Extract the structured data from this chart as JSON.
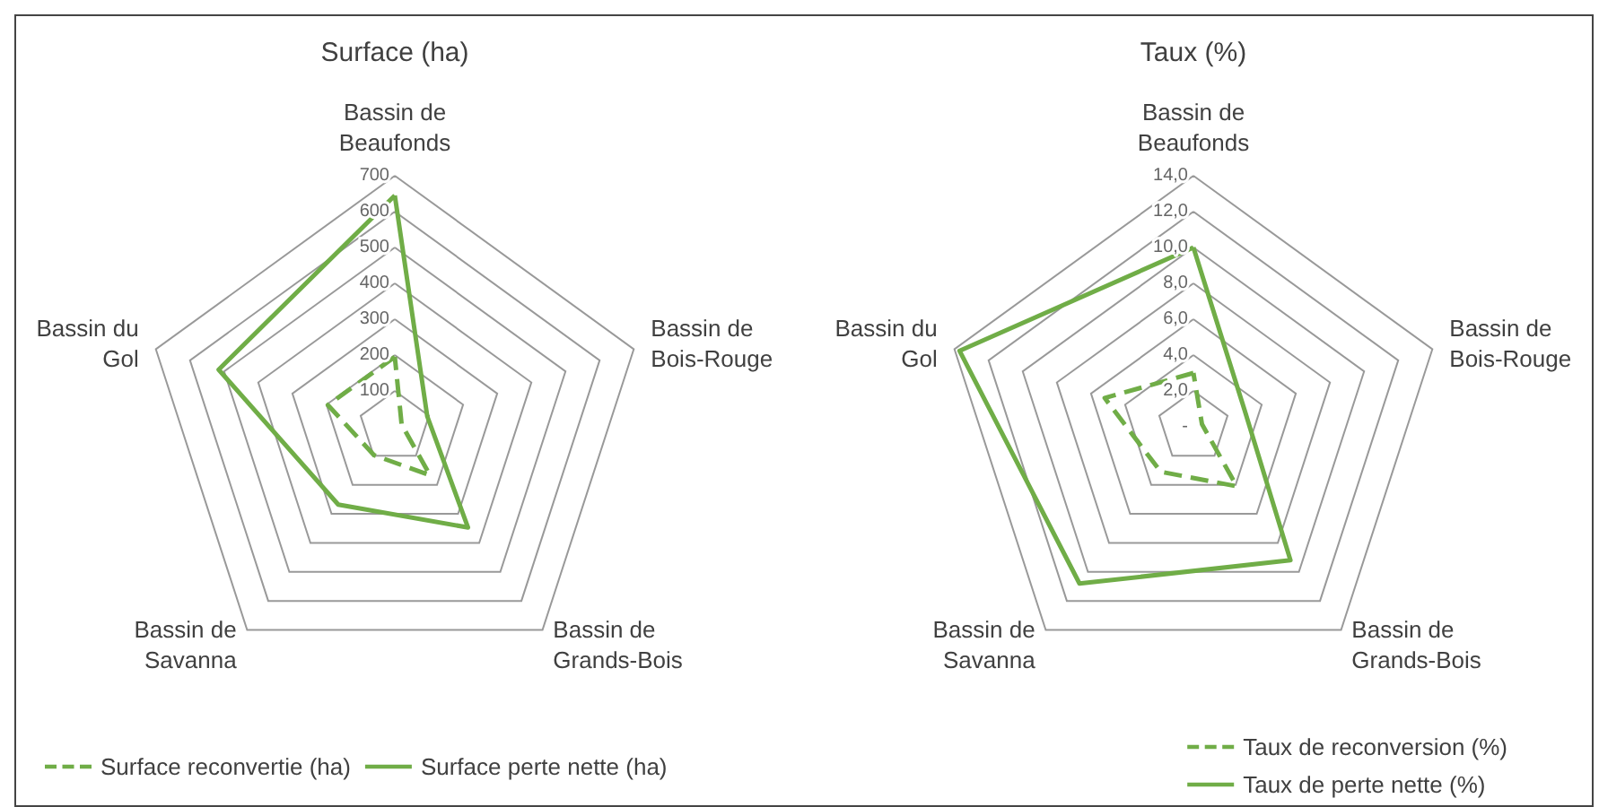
{
  "chart_data": [
    {
      "type": "radar",
      "title": "Surface (ha)",
      "categories": [
        "Bassin de Beaufonds",
        "Bassin de Bois-Rouge",
        "Bassin de Grands-Bois",
        "Bassin de Savanna",
        "Bassin du Gol"
      ],
      "series": [
        {
          "name": "Surface reconvertie (ha)",
          "color": "#70ad47",
          "line_style": "dashed",
          "values": [
            195,
            20,
            167,
            98,
            196
          ]
        },
        {
          "name": "Surface perte nette (ha)",
          "color": "#70ad47",
          "line_style": "solid",
          "values": [
            645,
            95,
            347,
            268,
            516
          ]
        }
      ],
      "ylim": [
        0,
        700
      ],
      "yticks": [
        100,
        200,
        300,
        400,
        500,
        600,
        700
      ],
      "legend": "bottom left",
      "marker": "none"
    },
    {
      "type": "radar",
      "title": "Taux (%)",
      "categories": [
        "Bassin de Beaufonds",
        "Bassin de Bois-Rouge",
        "Bassin de Grands-Bois",
        "Bassin de Savanna",
        "Bassin du Gol"
      ],
      "series": [
        {
          "name": "Taux de reconversion (%)",
          "color": "#70ad47",
          "line_style": "dashed",
          "values": [
            3.0,
            0.5,
            4.1,
            3.1,
            5.2
          ]
        },
        {
          "name": "Taux de perte nette (%)",
          "color": "#70ad47",
          "line_style": "solid",
          "values": [
            10.0,
            3.0,
            9.2,
            10.8,
            13.7
          ]
        }
      ],
      "ylim": [
        0,
        14
      ],
      "yticks": [
        {
          "value": 0,
          "label": "-"
        },
        {
          "value": 2,
          "label": "2,0"
        },
        {
          "value": 4,
          "label": "4,0"
        },
        {
          "value": 6,
          "label": "6,0"
        },
        {
          "value": 8,
          "label": "8,0"
        },
        {
          "value": 10,
          "label": "10,0"
        },
        {
          "value": 12,
          "label": "12,0"
        },
        {
          "value": 14,
          "label": "14,0"
        }
      ],
      "legend": "bottom right",
      "marker": "none"
    }
  ]
}
